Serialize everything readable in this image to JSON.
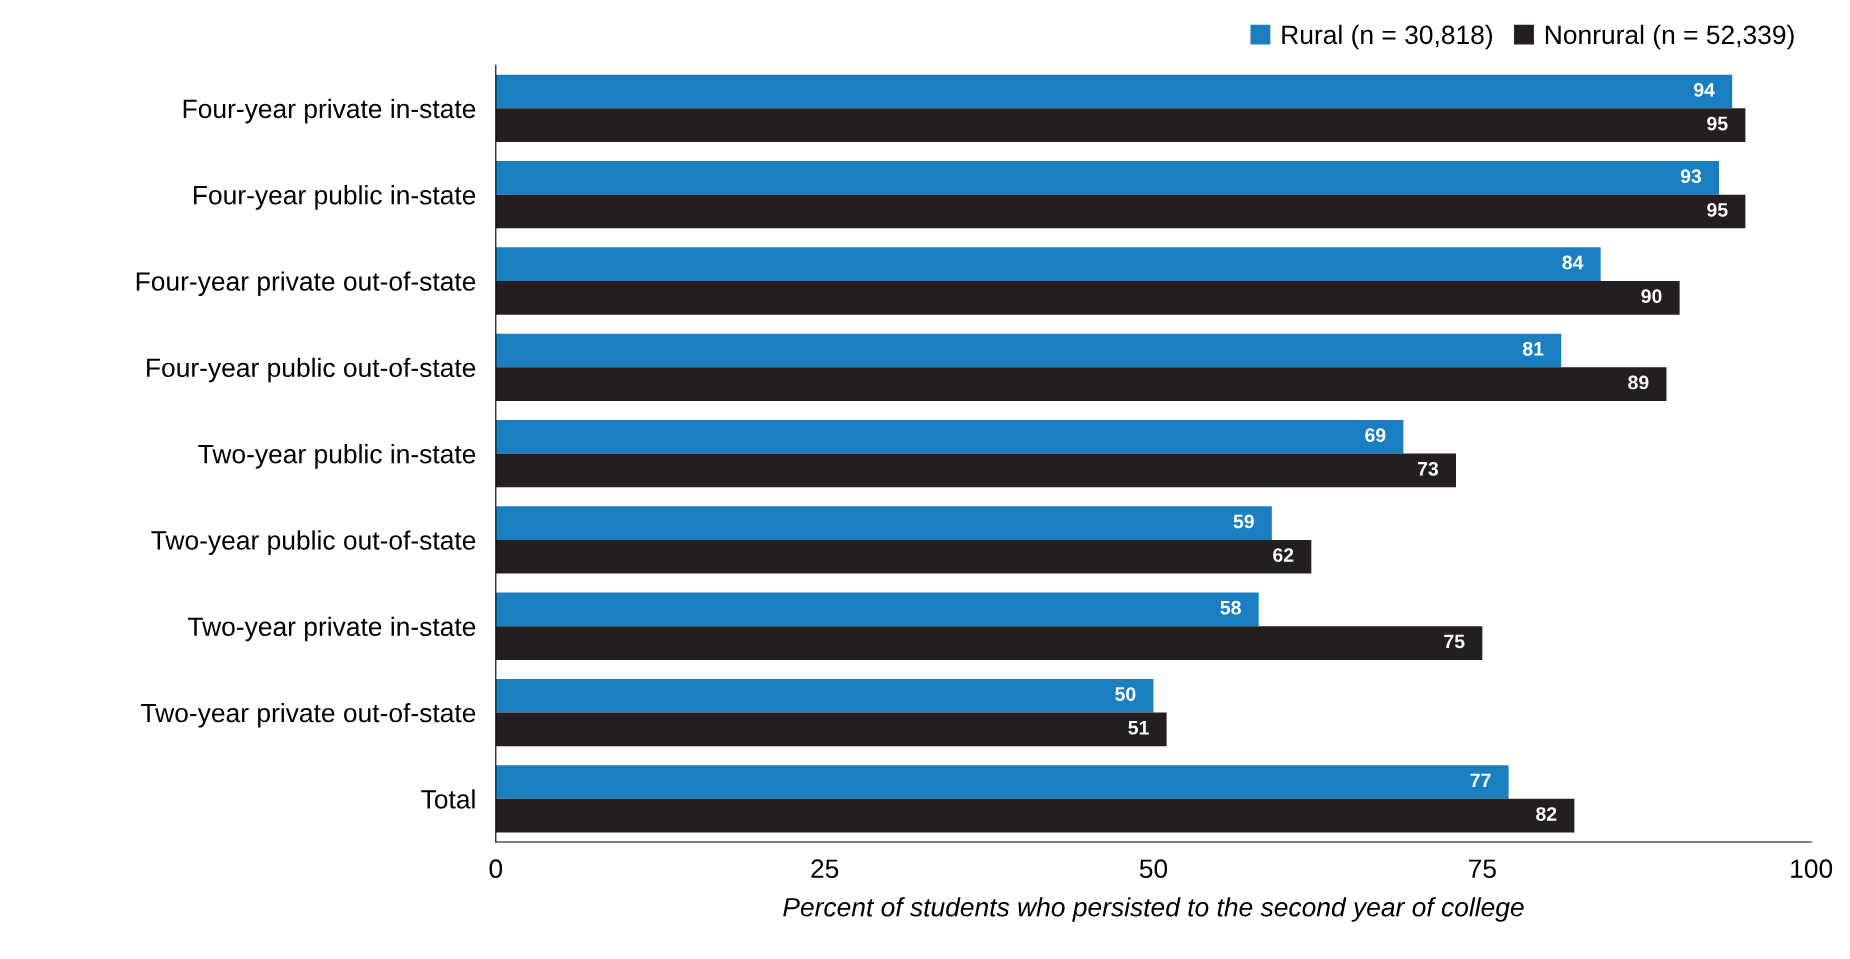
{
  "chart_data": {
    "type": "bar",
    "orientation": "horizontal",
    "xlabel": "Percent of students who persisted to the second year of college",
    "categories": [
      "Four-year private in-state",
      "Four-year public in-state",
      "Four-year private out-of-state",
      "Four-year public out-of-state",
      "Two-year public in-state",
      "Two-year public out-of-state",
      "Two-year private in-state",
      "Two-year private out-of-state",
      "Total"
    ],
    "series": [
      {
        "name": "Rural (n = 30,818)",
        "color": "#1a7fc1",
        "values": [
          94,
          93,
          84,
          81,
          69,
          59,
          58,
          50,
          77
        ]
      },
      {
        "name": "Nonrural (n = 52,339)",
        "color": "#231f20",
        "values": [
          95,
          95,
          90,
          89,
          73,
          62,
          75,
          51,
          82
        ]
      }
    ],
    "xlim": [
      0,
      100
    ],
    "xticks": [
      0,
      25,
      50,
      75,
      100
    ],
    "data_labels": true,
    "grid": false,
    "legend": "top right"
  }
}
